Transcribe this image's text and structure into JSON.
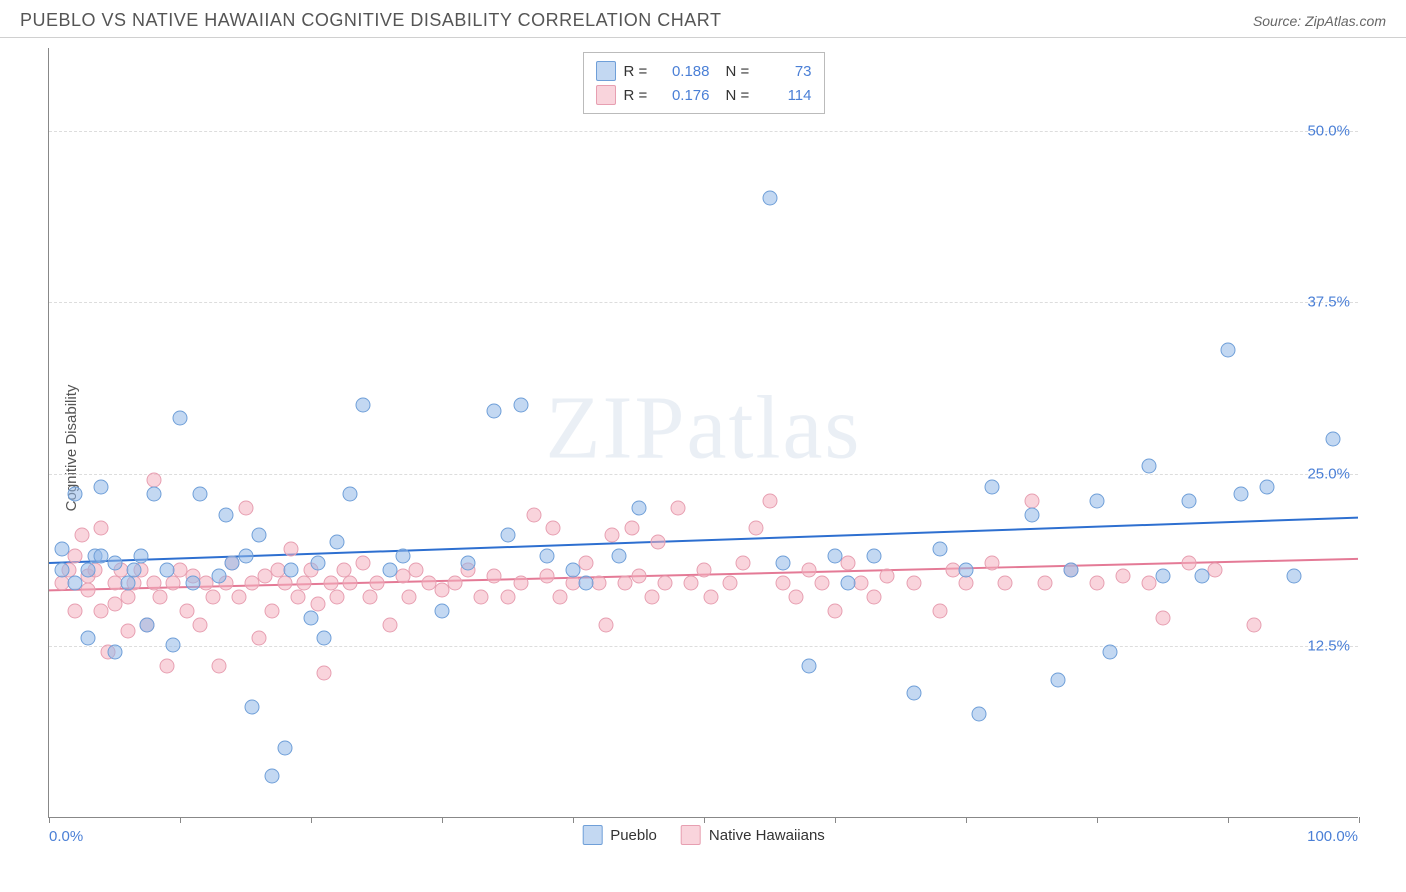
{
  "title": "PUEBLO VS NATIVE HAWAIIAN COGNITIVE DISABILITY CORRELATION CHART",
  "source": "Source: ZipAtlas.com",
  "ylabel": "Cognitive Disability",
  "watermark": "ZIPatlas",
  "chart": {
    "type": "scatter",
    "background_color": "#ffffff",
    "grid_color": "#dddddd",
    "axis_color": "#888888",
    "label_color": "#4a7fd6",
    "label_fontsize": 15,
    "title_color": "#555555",
    "title_fontsize": 18,
    "xlim": [
      0,
      100
    ],
    "ylim": [
      0,
      56
    ],
    "xtick_positions": [
      0,
      10,
      20,
      30,
      40,
      50,
      60,
      70,
      80,
      90,
      100
    ],
    "xtick_labels": {
      "left": "0.0%",
      "right": "100.0%"
    },
    "yticks": [
      {
        "v": 12.5,
        "label": "12.5%"
      },
      {
        "v": 25.0,
        "label": "25.0%"
      },
      {
        "v": 37.5,
        "label": "37.5%"
      },
      {
        "v": 50.0,
        "label": "50.0%"
      }
    ],
    "point_radius": 7.5,
    "trend_line_width": 2,
    "series": [
      {
        "name": "Pueblo",
        "fill_color": "rgba(146,184,232,0.55)",
        "stroke_color": "#6f9fd8",
        "trend_color": "#2d6fd0",
        "R": "0.188",
        "N": "73",
        "trend": {
          "y_at_x0": 18.5,
          "y_at_x100": 21.8
        },
        "points": [
          [
            1,
            18
          ],
          [
            1,
            19.5
          ],
          [
            2,
            17
          ],
          [
            2,
            23.5
          ],
          [
            3,
            18
          ],
          [
            3,
            13
          ],
          [
            3.5,
            19
          ],
          [
            4,
            19
          ],
          [
            4,
            24
          ],
          [
            5,
            12
          ],
          [
            5,
            18.5
          ],
          [
            6,
            17
          ],
          [
            6.5,
            18
          ],
          [
            7,
            19
          ],
          [
            7.5,
            14
          ],
          [
            8,
            23.5
          ],
          [
            9,
            18
          ],
          [
            9.5,
            12.5
          ],
          [
            10,
            29
          ],
          [
            11,
            17
          ],
          [
            11.5,
            23.5
          ],
          [
            13,
            17.5
          ],
          [
            13.5,
            22
          ],
          [
            14,
            18.5
          ],
          [
            15,
            19
          ],
          [
            15.5,
            8
          ],
          [
            16,
            20.5
          ],
          [
            17,
            3
          ],
          [
            18,
            5
          ],
          [
            18.5,
            18
          ],
          [
            20,
            14.5
          ],
          [
            20.5,
            18.5
          ],
          [
            21,
            13
          ],
          [
            22,
            20
          ],
          [
            23,
            23.5
          ],
          [
            24,
            30
          ],
          [
            26,
            18
          ],
          [
            27,
            19
          ],
          [
            30,
            15
          ],
          [
            32,
            18.5
          ],
          [
            34,
            29.5
          ],
          [
            35,
            20.5
          ],
          [
            36,
            30
          ],
          [
            38,
            19
          ],
          [
            40,
            18
          ],
          [
            41,
            17
          ],
          [
            43.5,
            19
          ],
          [
            45,
            22.5
          ],
          [
            55,
            45
          ],
          [
            56,
            18.5
          ],
          [
            58,
            11
          ],
          [
            60,
            19
          ],
          [
            61,
            17
          ],
          [
            63,
            19
          ],
          [
            66,
            9
          ],
          [
            68,
            19.5
          ],
          [
            70,
            18
          ],
          [
            71,
            7.5
          ],
          [
            72,
            24
          ],
          [
            75,
            22
          ],
          [
            77,
            10
          ],
          [
            78,
            18
          ],
          [
            80,
            23
          ],
          [
            81,
            12
          ],
          [
            84,
            25.5
          ],
          [
            85,
            17.5
          ],
          [
            87,
            23
          ],
          [
            88,
            17.5
          ],
          [
            90,
            34
          ],
          [
            91,
            23.5
          ],
          [
            93,
            24
          ],
          [
            95,
            17.5
          ],
          [
            98,
            27.5
          ]
        ]
      },
      {
        "name": "Native Hawaiians",
        "fill_color": "rgba(244,176,192,0.55)",
        "stroke_color": "#e79fb1",
        "trend_color": "#e47a96",
        "R": "0.176",
        "N": "114",
        "trend": {
          "y_at_x0": 16.5,
          "y_at_x100": 18.8
        },
        "points": [
          [
            1,
            17
          ],
          [
            1.5,
            18
          ],
          [
            2,
            19
          ],
          [
            2,
            15
          ],
          [
            2.5,
            20.5
          ],
          [
            3,
            16.5
          ],
          [
            3,
            17.5
          ],
          [
            3.5,
            18
          ],
          [
            4,
            15
          ],
          [
            4,
            21
          ],
          [
            4.5,
            12
          ],
          [
            5,
            15.5
          ],
          [
            5,
            17
          ],
          [
            5.5,
            18
          ],
          [
            6,
            16
          ],
          [
            6,
            13.5
          ],
          [
            6.5,
            17
          ],
          [
            7,
            18
          ],
          [
            7.5,
            14
          ],
          [
            8,
            17
          ],
          [
            8,
            24.5
          ],
          [
            8.5,
            16
          ],
          [
            9,
            11
          ],
          [
            9.5,
            17
          ],
          [
            10,
            18
          ],
          [
            10.5,
            15
          ],
          [
            11,
            17.5
          ],
          [
            11.5,
            14
          ],
          [
            12,
            17
          ],
          [
            12.5,
            16
          ],
          [
            13,
            11
          ],
          [
            13.5,
            17
          ],
          [
            14,
            18.5
          ],
          [
            14.5,
            16
          ],
          [
            15,
            22.5
          ],
          [
            15.5,
            17
          ],
          [
            16,
            13
          ],
          [
            16.5,
            17.5
          ],
          [
            17,
            15
          ],
          [
            17.5,
            18
          ],
          [
            18,
            17
          ],
          [
            18.5,
            19.5
          ],
          [
            19,
            16
          ],
          [
            19.5,
            17
          ],
          [
            20,
            18
          ],
          [
            20.5,
            15.5
          ],
          [
            21,
            10.5
          ],
          [
            21.5,
            17
          ],
          [
            22,
            16
          ],
          [
            22.5,
            18
          ],
          [
            23,
            17
          ],
          [
            24,
            18.5
          ],
          [
            24.5,
            16
          ],
          [
            25,
            17
          ],
          [
            26,
            14
          ],
          [
            27,
            17.5
          ],
          [
            27.5,
            16
          ],
          [
            28,
            18
          ],
          [
            29,
            17
          ],
          [
            30,
            16.5
          ],
          [
            31,
            17
          ],
          [
            32,
            18
          ],
          [
            33,
            16
          ],
          [
            34,
            17.5
          ],
          [
            35,
            16
          ],
          [
            36,
            17
          ],
          [
            37,
            22
          ],
          [
            38,
            17.5
          ],
          [
            38.5,
            21
          ],
          [
            39,
            16
          ],
          [
            40,
            17
          ],
          [
            41,
            18.5
          ],
          [
            42,
            17
          ],
          [
            42.5,
            14
          ],
          [
            43,
            20.5
          ],
          [
            44,
            17
          ],
          [
            44.5,
            21
          ],
          [
            45,
            17.5
          ],
          [
            46,
            16
          ],
          [
            46.5,
            20
          ],
          [
            47,
            17
          ],
          [
            48,
            22.5
          ],
          [
            49,
            17
          ],
          [
            50,
            18
          ],
          [
            50.5,
            16
          ],
          [
            52,
            17
          ],
          [
            53,
            18.5
          ],
          [
            54,
            21
          ],
          [
            55,
            23
          ],
          [
            56,
            17
          ],
          [
            57,
            16
          ],
          [
            58,
            18
          ],
          [
            59,
            17
          ],
          [
            60,
            15
          ],
          [
            61,
            18.5
          ],
          [
            62,
            17
          ],
          [
            63,
            16
          ],
          [
            64,
            17.5
          ],
          [
            66,
            17
          ],
          [
            68,
            15
          ],
          [
            69,
            18
          ],
          [
            70,
            17
          ],
          [
            72,
            18.5
          ],
          [
            73,
            17
          ],
          [
            75,
            23
          ],
          [
            76,
            17
          ],
          [
            78,
            18
          ],
          [
            80,
            17
          ],
          [
            82,
            17.5
          ],
          [
            84,
            17
          ],
          [
            85,
            14.5
          ],
          [
            87,
            18.5
          ],
          [
            89,
            18
          ],
          [
            92,
            14
          ]
        ]
      }
    ]
  }
}
